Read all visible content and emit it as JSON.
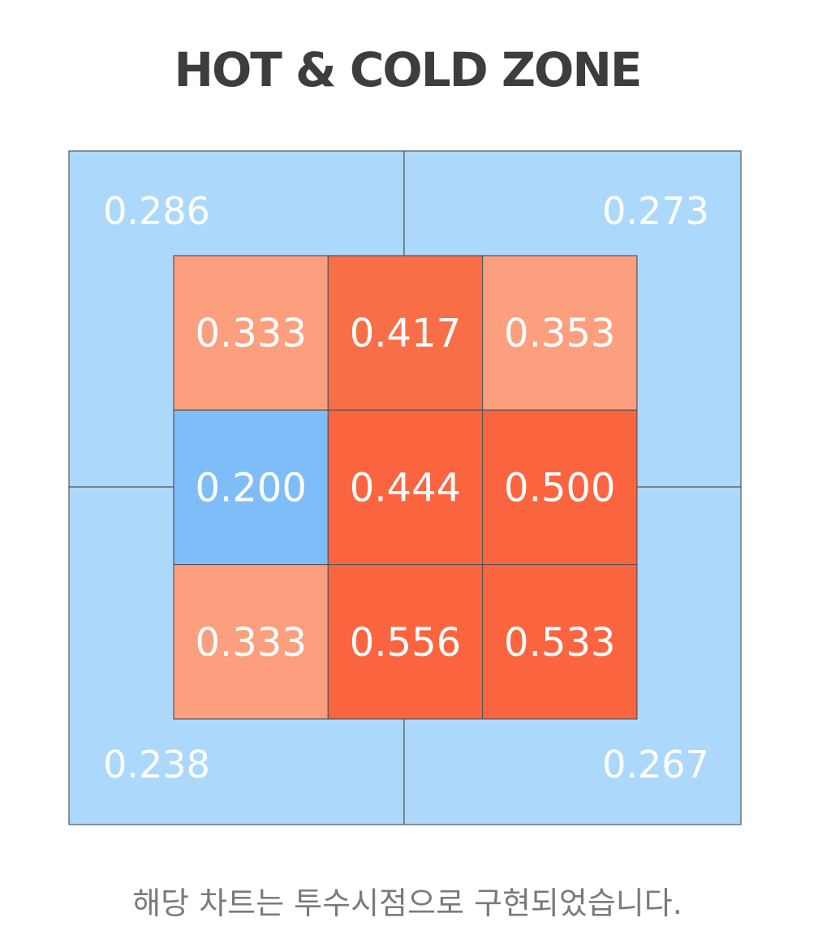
{
  "title": "HOT & COLD ZONE",
  "caption": "해당 차트는 투수시점으로 구현되었습니다.",
  "colors": {
    "outer_zone": "#acd8fb",
    "cold_cell": "#7fbdf8",
    "hot_strong": "#fa6540",
    "hot_mid": "#f86f47",
    "hot_light": "#fc9f7f",
    "grid_line": "#555555",
    "cell_text": "#ffffff"
  },
  "chart_data": {
    "type": "heatmap",
    "title": "HOT & COLD ZONE",
    "outer_zones": [
      {
        "position": "top-left",
        "value": "0.286"
      },
      {
        "position": "top-right",
        "value": "0.273"
      },
      {
        "position": "bottom-left",
        "value": "0.238"
      },
      {
        "position": "bottom-right",
        "value": "0.267"
      }
    ],
    "inner_grid": [
      [
        "0.333",
        "0.417",
        "0.353"
      ],
      [
        "0.200",
        "0.444",
        "0.500"
      ],
      [
        "0.333",
        "0.556",
        "0.533"
      ]
    ]
  }
}
